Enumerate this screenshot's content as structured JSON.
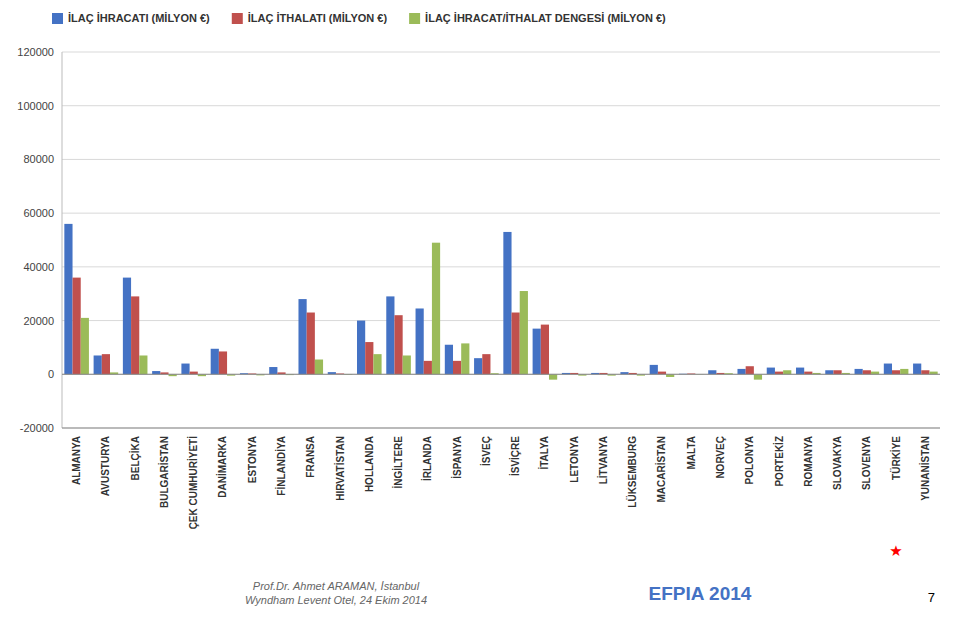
{
  "chart_data": {
    "type": "bar",
    "categories": [
      "ALMANYA",
      "AVUSTURYA",
      "BELÇİKA",
      "BULGARİSTAN",
      "ÇEK CUMHURİYETİ",
      "DANİMARKA",
      "ESTONYA",
      "FİNLANDİYA",
      "FRANSA",
      "HIRVATİSTAN",
      "HOLLANDA",
      "İNGİLTERE",
      "İRLANDA",
      "İSPANYA",
      "İSVEÇ",
      "İSVİÇRE",
      "İTALYA",
      "LETONYA",
      "LİTVANYA",
      "LÜKSEMBURG",
      "MACARİSTAN",
      "MALTA",
      "NORVEÇ",
      "POLONYA",
      "PORTEKİZ",
      "ROMANYA",
      "SLOVAKYA",
      "SLOVENYA",
      "TÜRKİYE",
      "YUNANİSTAN"
    ],
    "series": [
      {
        "name": "İLAÇ İHRACATI (MİLYON €)",
        "color": "#4472C4",
        "values": [
          56000,
          7000,
          36000,
          1200,
          4000,
          9500,
          400,
          2700,
          28000,
          800,
          20000,
          29000,
          24500,
          11000,
          6000,
          53000,
          17000,
          500,
          500,
          800,
          3500,
          200,
          1500,
          2000,
          2500,
          2500,
          1500,
          2000,
          4000,
          4000
        ]
      },
      {
        "name": "İLAÇ İTHALATI (MİLYON €)",
        "color": "#C0504D",
        "values": [
          36000,
          7500,
          29000,
          700,
          1000,
          8500,
          300,
          700,
          23000,
          300,
          12000,
          22000,
          5000,
          5000,
          7500,
          23000,
          18500,
          500,
          500,
          500,
          1000,
          300,
          500,
          3000,
          1000,
          1000,
          1500,
          1500,
          1500,
          1500
        ]
      },
      {
        "name": "İLAÇ İHRACAT/İTHALAT DENGESİ (MİLYON €)",
        "color": "#9BBB59",
        "values": [
          21000,
          700,
          7000,
          -700,
          -700,
          -500,
          -400,
          -300,
          5500,
          -200,
          7500,
          7000,
          49000,
          11500,
          400,
          31000,
          -2000,
          -500,
          -500,
          -500,
          -1000,
          -100,
          400,
          -2000,
          1500,
          500,
          500,
          1000,
          2000,
          1000
        ]
      }
    ],
    "ylim": [
      -20000,
      120000
    ],
    "yticks": [
      -20000,
      0,
      20000,
      40000,
      60000,
      80000,
      100000,
      120000
    ],
    "grid": true,
    "legend": "top",
    "annotations": [
      {
        "text": "★",
        "x": "TÜRKİYE",
        "color": "red"
      },
      {
        "text": "Prof.Dr. Ahmet ARAMAN, İstanbul\nWyndham Levent Otel, 24 Ekim 2014",
        "color": "#666666"
      },
      {
        "text": "EFPIA 2014",
        "color": "#4472C4"
      },
      {
        "text": "7"
      }
    ]
  }
}
